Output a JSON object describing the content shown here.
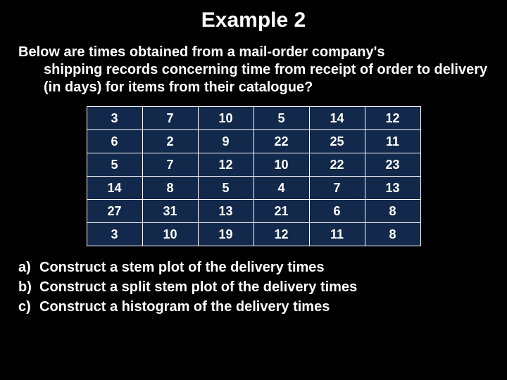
{
  "title": "Example 2",
  "intro_first": "Below are times obtained from a mail-order company's",
  "intro_rest": "shipping records concerning time from receipt of order to delivery (in days) for items from their catalogue?",
  "table": {
    "rows": [
      [
        "3",
        "7",
        "10",
        "5",
        "14",
        "12"
      ],
      [
        "6",
        "2",
        "9",
        "22",
        "25",
        "11"
      ],
      [
        "5",
        "7",
        "12",
        "10",
        "22",
        "23"
      ],
      [
        "14",
        "8",
        "5",
        "4",
        "7",
        "13"
      ],
      [
        "27",
        "31",
        "13",
        "21",
        "6",
        "8"
      ],
      [
        "3",
        "10",
        "19",
        "12",
        "11",
        "8"
      ]
    ],
    "cell_bg": "#13294b",
    "cell_border": "#ffffff",
    "cell_text_color": "#ffffff"
  },
  "questions": [
    {
      "letter": "a)",
      "text": "Construct a stem plot of the delivery times"
    },
    {
      "letter": "b)",
      "text": "Construct a split stem plot of the delivery times"
    },
    {
      "letter": "c)",
      "text": "Construct a histogram of the delivery times"
    }
  ],
  "colors": {
    "background": "#000000",
    "text": "#ffffff"
  },
  "typography": {
    "title_fontsize": 30,
    "body_fontsize": 20,
    "cell_fontsize": 18,
    "font_family": "Arial"
  }
}
